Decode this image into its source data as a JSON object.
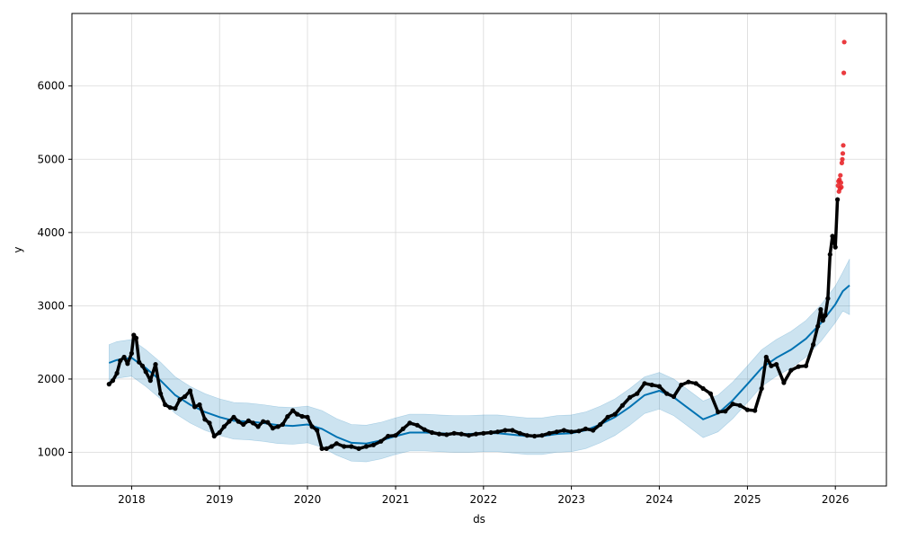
{
  "chart_data": {
    "type": "line",
    "title": "",
    "xlabel": "ds",
    "ylabel": "y",
    "x_range": [
      "2017-04-28",
      "2026-08-01"
    ],
    "ylim": [
      540,
      6990
    ],
    "grid": true,
    "x_ticks": [
      "2018",
      "2019",
      "2020",
      "2021",
      "2022",
      "2023",
      "2024",
      "2025",
      "2026"
    ],
    "y_ticks": [
      1000,
      2000,
      3000,
      4000,
      5000,
      6000
    ],
    "colors": {
      "forecast_line": "#0072B2",
      "interval_band": "#0072B2",
      "history_points": "#000000",
      "anomaly_points": "#E8262A",
      "grid": "#d9d9d9"
    },
    "series": [
      {
        "kind": "forecast",
        "x": [
          "2017-09-29",
          "2017-11-01",
          "2018-01-01",
          "2018-03-01",
          "2018-05-01",
          "2018-07-01",
          "2018-09-01",
          "2018-11-01",
          "2019-01-01",
          "2019-03-01",
          "2019-05-01",
          "2019-07-01",
          "2019-09-01",
          "2019-11-01",
          "2020-01-01",
          "2020-03-01",
          "2020-05-01",
          "2020-07-01",
          "2020-09-01",
          "2020-11-01",
          "2021-01-01",
          "2021-03-01",
          "2021-05-01",
          "2021-07-01",
          "2021-09-01",
          "2021-11-01",
          "2022-01-01",
          "2022-03-01",
          "2022-05-01",
          "2022-07-01",
          "2022-09-01",
          "2022-11-01",
          "2023-01-01",
          "2023-03-01",
          "2023-05-01",
          "2023-07-01",
          "2023-09-01",
          "2023-11-01",
          "2024-01-01",
          "2024-03-01",
          "2024-05-01",
          "2024-07-01",
          "2024-09-01",
          "2024-11-01",
          "2025-01-01",
          "2025-03-01",
          "2025-05-01",
          "2025-07-01",
          "2025-09-01",
          "2025-11-01",
          "2026-01-01",
          "2026-02-01",
          "2026-03-01"
        ],
        "y": [
          2220,
          2260,
          2290,
          2150,
          1980,
          1780,
          1650,
          1550,
          1480,
          1430,
          1420,
          1400,
          1370,
          1360,
          1380,
          1320,
          1210,
          1130,
          1120,
          1160,
          1220,
          1270,
          1270,
          1260,
          1250,
          1250,
          1260,
          1260,
          1240,
          1220,
          1220,
          1250,
          1260,
          1300,
          1380,
          1480,
          1620,
          1780,
          1840,
          1750,
          1600,
          1450,
          1530,
          1710,
          1930,
          2150,
          2290,
          2400,
          2550,
          2760,
          3020,
          3200,
          3280
        ]
      },
      {
        "kind": "uncertainty_interval",
        "x": [
          "2017-09-29",
          "2017-11-01",
          "2018-01-01",
          "2018-03-01",
          "2018-05-01",
          "2018-07-01",
          "2018-09-01",
          "2018-11-01",
          "2019-01-01",
          "2019-03-01",
          "2019-05-01",
          "2019-07-01",
          "2019-09-01",
          "2019-11-01",
          "2020-01-01",
          "2020-03-01",
          "2020-05-01",
          "2020-07-01",
          "2020-09-01",
          "2020-11-01",
          "2021-01-01",
          "2021-03-01",
          "2021-05-01",
          "2021-07-01",
          "2021-09-01",
          "2021-11-01",
          "2022-01-01",
          "2022-03-01",
          "2022-05-01",
          "2022-07-01",
          "2022-09-01",
          "2022-11-01",
          "2023-01-01",
          "2023-03-01",
          "2023-05-01",
          "2023-07-01",
          "2023-09-01",
          "2023-11-01",
          "2024-01-01",
          "2024-03-01",
          "2024-05-01",
          "2024-07-01",
          "2024-09-01",
          "2024-11-01",
          "2025-01-01",
          "2025-03-01",
          "2025-05-01",
          "2025-07-01",
          "2025-09-01",
          "2025-11-01",
          "2026-01-01",
          "2026-02-01",
          "2026-03-01"
        ],
        "lower": [
          1970,
          2010,
          2040,
          1900,
          1730,
          1530,
          1400,
          1300,
          1230,
          1180,
          1170,
          1150,
          1120,
          1110,
          1130,
          1070,
          960,
          880,
          870,
          910,
          970,
          1020,
          1020,
          1010,
          1000,
          1000,
          1010,
          1010,
          990,
          970,
          970,
          1000,
          1010,
          1050,
          1130,
          1230,
          1370,
          1530,
          1590,
          1500,
          1350,
          1200,
          1280,
          1460,
          1680,
          1900,
          2040,
          2150,
          2300,
          2510,
          2770,
          2930,
          2880
        ],
        "upper": [
          2470,
          2510,
          2540,
          2400,
          2230,
          2030,
          1900,
          1800,
          1730,
          1680,
          1670,
          1650,
          1620,
          1610,
          1630,
          1570,
          1460,
          1380,
          1370,
          1410,
          1470,
          1520,
          1520,
          1510,
          1500,
          1500,
          1510,
          1510,
          1490,
          1470,
          1470,
          1500,
          1510,
          1550,
          1630,
          1730,
          1870,
          2030,
          2090,
          2000,
          1850,
          1700,
          1780,
          1960,
          2180,
          2400,
          2540,
          2650,
          2800,
          3010,
          3270,
          3460,
          3640
        ]
      },
      {
        "kind": "observed",
        "x": [
          "2017-09-29",
          "2017-10-15",
          "2017-11-01",
          "2017-11-15",
          "2017-12-01",
          "2017-12-15",
          "2018-01-01",
          "2018-01-10",
          "2018-01-20",
          "2018-02-01",
          "2018-02-15",
          "2018-03-01",
          "2018-03-20",
          "2018-04-10",
          "2018-05-01",
          "2018-05-20",
          "2018-06-10",
          "2018-07-01",
          "2018-07-20",
          "2018-08-10",
          "2018-09-01",
          "2018-09-20",
          "2018-10-10",
          "2018-11-01",
          "2018-11-20",
          "2018-12-10",
          "2019-01-01",
          "2019-01-20",
          "2019-02-10",
          "2019-03-01",
          "2019-03-20",
          "2019-04-10",
          "2019-05-01",
          "2019-05-20",
          "2019-06-10",
          "2019-07-01",
          "2019-07-20",
          "2019-08-10",
          "2019-09-01",
          "2019-09-20",
          "2019-10-10",
          "2019-11-01",
          "2019-11-20",
          "2019-12-10",
          "2020-01-01",
          "2020-01-20",
          "2020-02-10",
          "2020-03-01",
          "2020-03-20",
          "2020-04-10",
          "2020-05-01",
          "2020-06-01",
          "2020-07-01",
          "2020-08-01",
          "2020-09-01",
          "2020-10-01",
          "2020-11-01",
          "2020-12-01",
          "2021-01-01",
          "2021-02-01",
          "2021-03-01",
          "2021-04-01",
          "2021-05-01",
          "2021-06-01",
          "2021-07-01",
          "2021-08-01",
          "2021-09-01",
          "2021-10-01",
          "2021-11-01",
          "2021-12-01",
          "2022-01-01",
          "2022-02-01",
          "2022-03-01",
          "2022-04-01",
          "2022-05-01",
          "2022-06-01",
          "2022-07-01",
          "2022-08-01",
          "2022-09-01",
          "2022-10-01",
          "2022-11-01",
          "2022-12-01",
          "2023-01-01",
          "2023-02-01",
          "2023-03-01",
          "2023-04-01",
          "2023-05-01",
          "2023-06-01",
          "2023-07-01",
          "2023-08-01",
          "2023-09-01",
          "2023-10-01",
          "2023-11-01",
          "2023-12-01",
          "2024-01-01",
          "2024-02-01",
          "2024-03-01",
          "2024-04-01",
          "2024-05-01",
          "2024-06-01",
          "2024-07-01",
          "2024-08-01",
          "2024-09-01",
          "2024-10-01",
          "2024-11-01",
          "2024-12-01",
          "2025-01-01",
          "2025-02-01",
          "2025-03-01",
          "2025-03-20",
          "2025-04-10",
          "2025-05-01",
          "2025-06-01",
          "2025-07-01",
          "2025-08-01",
          "2025-09-01",
          "2025-10-01",
          "2025-10-20",
          "2025-11-01",
          "2025-11-10",
          "2025-11-20",
          "2025-12-01",
          "2025-12-10",
          "2025-12-20",
          "2026-01-01",
          "2026-01-10"
        ],
        "y": [
          1930,
          1980,
          2080,
          2250,
          2300,
          2210,
          2350,
          2600,
          2560,
          2230,
          2180,
          2100,
          1980,
          2200,
          1800,
          1650,
          1610,
          1600,
          1720,
          1760,
          1840,
          1620,
          1650,
          1450,
          1400,
          1220,
          1270,
          1350,
          1420,
          1480,
          1420,
          1380,
          1430,
          1400,
          1350,
          1420,
          1410,
          1330,
          1350,
          1380,
          1490,
          1570,
          1520,
          1490,
          1480,
          1350,
          1300,
          1050,
          1050,
          1080,
          1120,
          1080,
          1080,
          1050,
          1080,
          1100,
          1150,
          1220,
          1230,
          1320,
          1400,
          1370,
          1310,
          1270,
          1250,
          1240,
          1260,
          1250,
          1230,
          1250,
          1260,
          1270,
          1280,
          1300,
          1300,
          1260,
          1230,
          1220,
          1230,
          1260,
          1280,
          1300,
          1280,
          1290,
          1320,
          1300,
          1380,
          1480,
          1520,
          1640,
          1750,
          1800,
          1940,
          1920,
          1900,
          1800,
          1760,
          1920,
          1960,
          1940,
          1870,
          1800,
          1550,
          1560,
          1660,
          1640,
          1580,
          1570,
          1870,
          2300,
          2180,
          2200,
          1950,
          2120,
          2170,
          2180,
          2470,
          2720,
          2950,
          2800,
          2870,
          3100,
          3700,
          3950,
          3800,
          4450
        ]
      },
      {
        "kind": "anomalies",
        "x": [
          "2026-01-12",
          "2026-01-14",
          "2026-01-16",
          "2026-01-18",
          "2026-01-20",
          "2026-01-22",
          "2026-01-24",
          "2026-01-26",
          "2026-01-28",
          "2026-01-30",
          "2026-02-01",
          "2026-02-03",
          "2026-02-05",
          "2026-02-07"
        ],
        "y": [
          4640,
          4700,
          4560,
          4720,
          4600,
          4780,
          4680,
          4620,
          4950,
          5000,
          5080,
          5190,
          6180,
          6600
        ]
      }
    ]
  }
}
